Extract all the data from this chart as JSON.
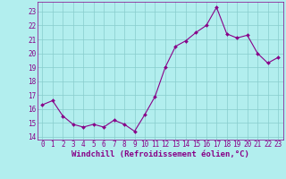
{
  "x": [
    0,
    1,
    2,
    3,
    4,
    5,
    6,
    7,
    8,
    9,
    10,
    11,
    12,
    13,
    14,
    15,
    16,
    17,
    18,
    19,
    20,
    21,
    22,
    23
  ],
  "y": [
    16.3,
    16.6,
    15.5,
    14.9,
    14.7,
    14.9,
    14.7,
    15.2,
    14.9,
    14.4,
    15.6,
    16.9,
    19.0,
    20.5,
    20.9,
    21.5,
    22.0,
    23.3,
    21.4,
    21.1,
    21.3,
    20.0,
    19.3,
    19.7
  ],
  "xlim": [
    -0.5,
    23.5
  ],
  "ylim": [
    13.8,
    23.7
  ],
  "yticks": [
    14,
    15,
    16,
    17,
    18,
    19,
    20,
    21,
    22,
    23
  ],
  "xticks": [
    0,
    1,
    2,
    3,
    4,
    5,
    6,
    7,
    8,
    9,
    10,
    11,
    12,
    13,
    14,
    15,
    16,
    17,
    18,
    19,
    20,
    21,
    22,
    23
  ],
  "xlabel": "Windchill (Refroidissement éolien,°C)",
  "line_color": "#880088",
  "marker_color": "#880088",
  "bg_color": "#b2eeee",
  "grid_color": "#88cccc",
  "axis_label_color": "#880088",
  "tick_color": "#880088",
  "xlabel_fontsize": 6.5,
  "tick_fontsize": 5.5
}
